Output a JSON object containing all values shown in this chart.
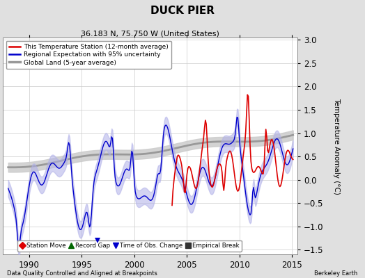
{
  "title": "DUCK PIER",
  "subtitle": "36.183 N, 75.750 W (United States)",
  "xlabel_left": "Data Quality Controlled and Aligned at Breakpoints",
  "xlabel_right": "Berkeley Earth",
  "ylabel": "Temperature Anomaly (°C)",
  "xlim": [
    1987.5,
    2015.5
  ],
  "ylim": [
    -1.6,
    3.05
  ],
  "yticks": [
    -1.5,
    -1.0,
    -0.5,
    0.0,
    0.5,
    1.0,
    1.5,
    2.0,
    2.5,
    3.0
  ],
  "xticks": [
    1990,
    1995,
    2000,
    2005,
    2010,
    2015
  ],
  "bg_color": "#e0e0e0",
  "plot_bg_color": "#ffffff",
  "grid_color": "#cccccc",
  "red_line_color": "#dd0000",
  "blue_line_color": "#0000cc",
  "blue_fill_color": "#b0b0e8",
  "gray_line_color": "#999999",
  "gray_fill_color": "#cccccc",
  "legend_items": [
    "This Temperature Station (12-month average)",
    "Regional Expectation with 95% uncertainty",
    "Global Land (5-year average)"
  ],
  "bottom_legend": [
    {
      "marker": "D",
      "color": "#dd0000",
      "label": "Station Move"
    },
    {
      "marker": "^",
      "color": "#006600",
      "label": "Record Gap"
    },
    {
      "marker": "v",
      "color": "#0000cc",
      "label": "Time of Obs. Change"
    },
    {
      "marker": "s",
      "color": "#333333",
      "label": "Empirical Break"
    }
  ],
  "time_of_obs_change_year": 1996.5,
  "time_of_obs_change_y": -1.3
}
